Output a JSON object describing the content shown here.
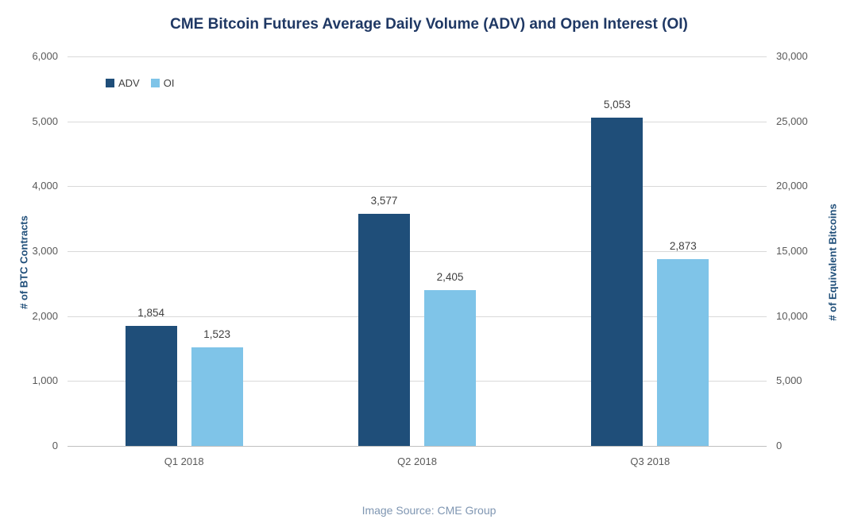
{
  "title": "CME Bitcoin Futures Average Daily Volume (ADV) and Open Interest (OI)",
  "caption": "Image Source: CME Group",
  "colors": {
    "adv": "#1F4E79",
    "oi": "#7FC4E8",
    "title": "#1F3864",
    "axis_title": "#1F4E79",
    "tick_label": "#595959",
    "gridline": "#D9D9D9",
    "axis_line": "#BFBFBF",
    "caption": "#7F96B2",
    "background": "#FFFFFF"
  },
  "chart_data": {
    "type": "bar",
    "title": "CME Bitcoin Futures Average Daily Volume (ADV) and Open Interest (OI)",
    "categories": [
      "Q1 2018",
      "Q2 2018",
      "Q3 2018"
    ],
    "series": [
      {
        "name": "ADV",
        "color": "#1F4E79",
        "values": [
          1854,
          3577,
          5053
        ],
        "labels": [
          "1,854",
          "3,577",
          "5,053"
        ]
      },
      {
        "name": "OI",
        "color": "#7FC4E8",
        "values": [
          1523,
          2405,
          2873
        ],
        "labels": [
          "1,523",
          "2,405",
          "2,873"
        ]
      }
    ],
    "left_axis": {
      "label": "# of BTC Contracts",
      "min": 0,
      "max": 6000,
      "step": 1000,
      "ticks": [
        "0",
        "1,000",
        "2,000",
        "3,000",
        "4,000",
        "5,000",
        "6,000"
      ]
    },
    "right_axis": {
      "label": "# of Equivalent Bitcoins",
      "min": 0,
      "max": 30000,
      "step": 5000,
      "ticks": [
        "0",
        "5,000",
        "10,000",
        "15,000",
        "20,000",
        "25,000",
        "30,000"
      ]
    },
    "legend": [
      "ADV",
      "OI"
    ],
    "legend_position": "top-left-inside",
    "grid": true
  }
}
